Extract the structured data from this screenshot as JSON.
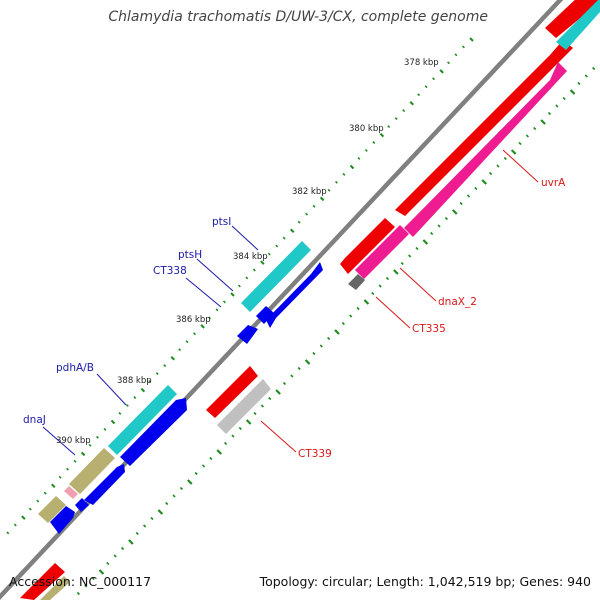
{
  "map": {
    "title": "Chlamydia trachomatis D/UW-3/CX, complete genome",
    "footer_left": "Accession: NC_000117",
    "footer_right": "Topology: circular; Length: 1,042,519 bp; Genes: 940",
    "ticks": [
      "378 kbp",
      "380 kbp",
      "382 kbp",
      "384 kbp",
      "386 kbp",
      "388 kbp",
      "390 kbp"
    ],
    "genes_plus": [
      "ptsI",
      "ptsH",
      "CT338",
      "pdhA/B",
      "dnaJ"
    ],
    "genes_minus": [
      "uvrA",
      "dnaX_2",
      "CT335",
      "CT339"
    ],
    "colors": {
      "backbone": "#808080",
      "forward_cds": "#0000ee",
      "reverse_cds": "#ee0000",
      "forward_label": "#1a1aa8",
      "reverse_label": "#d81818",
      "cyan": "#20c8c8",
      "magenta": "#ee1c90",
      "olive": "#b8b070",
      "grey": "#c0c0c0",
      "tick_green": "#1e8c1e"
    }
  }
}
